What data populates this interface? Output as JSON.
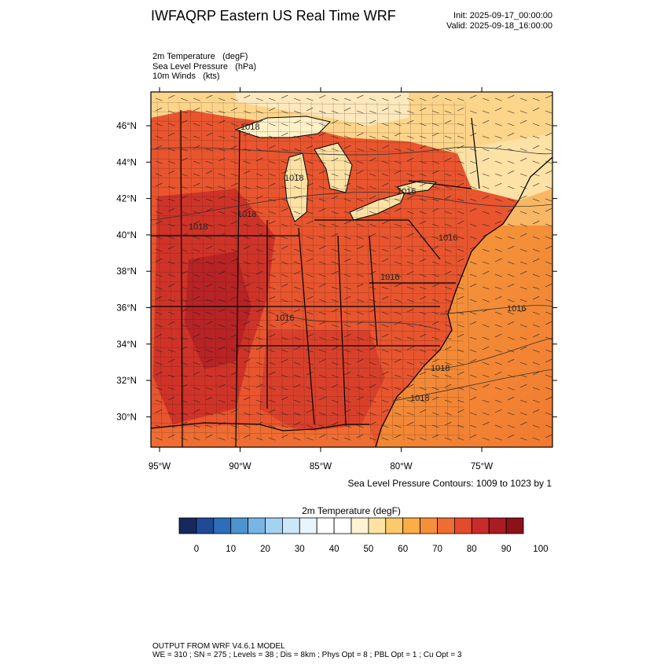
{
  "header": {
    "title": "IWFAQRP Eastern US Real Time WRF",
    "init": "Init: 2025-09-17_00:00:00",
    "valid": "Valid: 2025-09-18_16:00:00"
  },
  "fields": [
    {
      "name": "2m Temperature",
      "unit": "(degF)"
    },
    {
      "name": "Sea Level Pressure",
      "unit": "(hPa)"
    },
    {
      "name": "10m Winds",
      "unit": "(kts)"
    }
  ],
  "map": {
    "lat_ticks": [
      "46°N",
      "44°N",
      "42°N",
      "40°N",
      "38°N",
      "36°N",
      "34°N",
      "32°N",
      "30°N"
    ],
    "lon_ticks": [
      "95°W",
      "90°W",
      "85°W",
      "80°W",
      "75°W"
    ],
    "isobar_labels": [
      "1018",
      "1018",
      "1018",
      "1018",
      "1016",
      "1016",
      "1016",
      "1016",
      "1018",
      "1018",
      "1016"
    ],
    "colors": {
      "land_hot": "#d13a2a",
      "land_warm": "#e8552e",
      "ocean_warm": "#f28a38",
      "ocean_mild": "#f6a84a",
      "cool_north": "#fde2a5",
      "water": "#fff2c8"
    }
  },
  "contour_note": "Sea Level Pressure Contours: 1009 to 1023 by 1",
  "legend": {
    "title": "2m Temperature   (degF)",
    "labels": [
      "0",
      "10",
      "20",
      "30",
      "40",
      "50",
      "60",
      "70",
      "80",
      "90",
      "100"
    ],
    "colors": [
      "#16295c",
      "#1f4a96",
      "#2c6fb8",
      "#4d93cf",
      "#79b5e2",
      "#a3d3f2",
      "#cbe7f8",
      "#e9f5fc",
      "#ffffff",
      "#ffffff",
      "#fff3d3",
      "#fee3a4",
      "#fdc96a",
      "#fbad48",
      "#f68f3a",
      "#ee6d32",
      "#e34b2c",
      "#c92a2a",
      "#a91c23",
      "#8a1218"
    ]
  },
  "footer": {
    "line1": "OUTPUT FROM WRF V4.6.1 MODEL",
    "line2": "WE = 310 ; SN = 275 ; Levels = 38 ; Dis = 8km ; Phys Opt = 8 ; PBL Opt = 1 ; Cu Opt = 3"
  }
}
